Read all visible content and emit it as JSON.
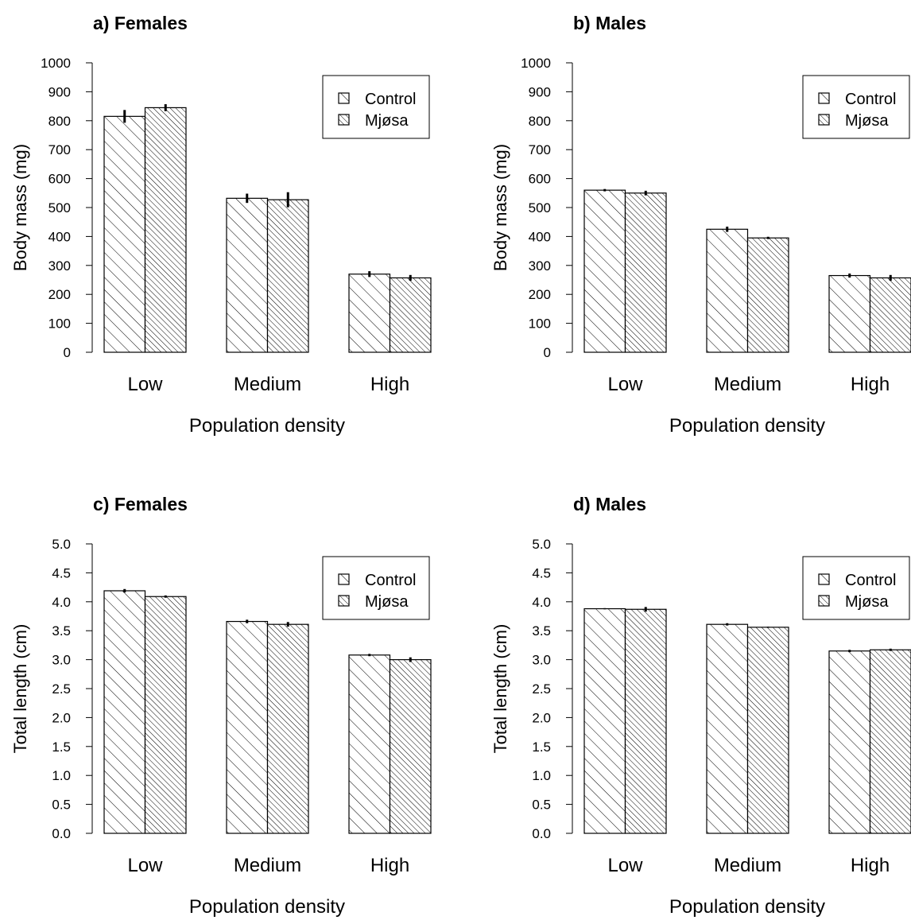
{
  "chart_data": [
    {
      "type": "bar",
      "title": "a) Females",
      "xlabel": "Population density",
      "ylabel": "Body mass (mg)",
      "ylim": [
        0,
        1000
      ],
      "yticks": [
        "0",
        "100",
        "200",
        "300",
        "400",
        "500",
        "600",
        "700",
        "800",
        "900",
        "1000"
      ],
      "categories": [
        "Low",
        "Medium",
        "High"
      ],
      "series": [
        {
          "name": "Control",
          "values": [
            815,
            532,
            270
          ],
          "error": [
            22,
            16,
            10
          ]
        },
        {
          "name": "Mjøsa",
          "values": [
            845,
            527,
            257
          ],
          "error": [
            12,
            26,
            10
          ]
        }
      ],
      "legend_position": "top-right"
    },
    {
      "type": "bar",
      "title": "b) Males",
      "xlabel": "Population density",
      "ylabel": "Body mass (mg)",
      "ylim": [
        0,
        1000
      ],
      "yticks": [
        "0",
        "100",
        "200",
        "300",
        "400",
        "500",
        "600",
        "700",
        "800",
        "900",
        "1000"
      ],
      "categories": [
        "Low",
        "Medium",
        "High"
      ],
      "series": [
        {
          "name": "Control",
          "values": [
            560,
            425,
            265
          ],
          "error": [
            4,
            9,
            7
          ]
        },
        {
          "name": "Mjøsa",
          "values": [
            550,
            395,
            257
          ],
          "error": [
            8,
            4,
            10
          ]
        }
      ],
      "legend_position": "top-right"
    },
    {
      "type": "bar",
      "title": "c) Females",
      "xlabel": "Population density",
      "ylabel": "Total length (cm)",
      "ylim": [
        0,
        5
      ],
      "yticks": [
        "0.0",
        "0.5",
        "1.0",
        "1.5",
        "2.0",
        "2.5",
        "3.0",
        "3.5",
        "4.0",
        "4.5",
        "5.0"
      ],
      "categories": [
        "Low",
        "Medium",
        "High"
      ],
      "series": [
        {
          "name": "Control",
          "values": [
            4.19,
            3.66,
            3.08
          ],
          "error": [
            0.03,
            0.03,
            0.02
          ]
        },
        {
          "name": "Mjøsa",
          "values": [
            4.09,
            3.61,
            3.0
          ],
          "error": [
            0.02,
            0.04,
            0.04
          ]
        }
      ],
      "legend_position": "top-right"
    },
    {
      "type": "bar",
      "title": "d) Males",
      "xlabel": "Population density",
      "ylabel": "Total length (cm)",
      "ylim": [
        0,
        5
      ],
      "yticks": [
        "0.0",
        "0.5",
        "1.0",
        "1.5",
        "2.0",
        "2.5",
        "3.0",
        "3.5",
        "4.0",
        "4.5",
        "5.0"
      ],
      "categories": [
        "Low",
        "Medium",
        "High"
      ],
      "series": [
        {
          "name": "Control",
          "values": [
            3.88,
            3.61,
            3.15
          ],
          "error": [
            0.01,
            0.02,
            0.02
          ]
        },
        {
          "name": "Mjøsa",
          "values": [
            3.87,
            3.56,
            3.17
          ],
          "error": [
            0.04,
            0.01,
            0.02
          ]
        }
      ],
      "legend_position": "top-right"
    }
  ]
}
